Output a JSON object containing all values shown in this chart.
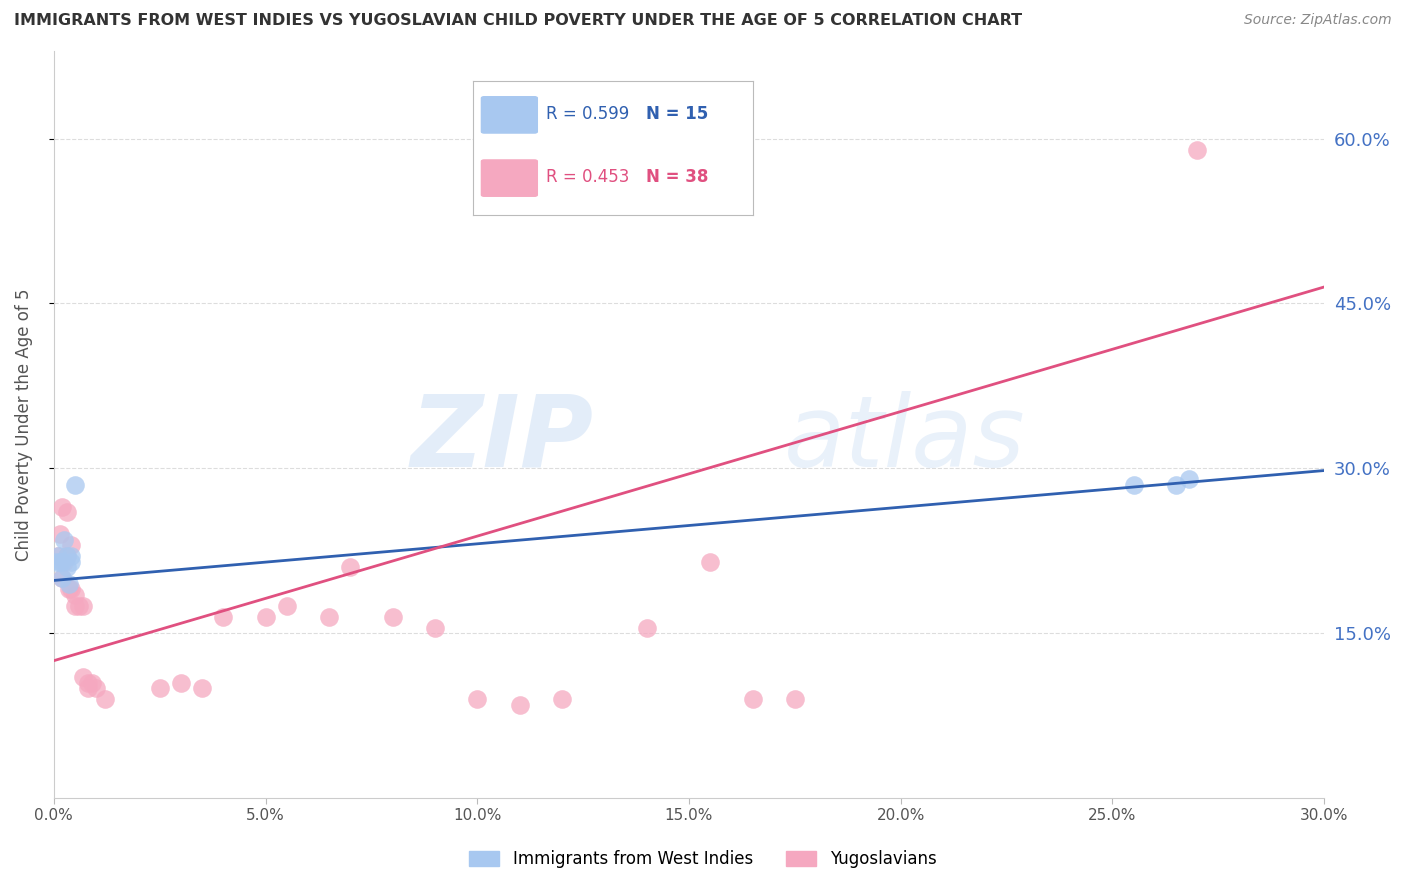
{
  "title": "IMMIGRANTS FROM WEST INDIES VS YUGOSLAVIAN CHILD POVERTY UNDER THE AGE OF 5 CORRELATION CHART",
  "source": "Source: ZipAtlas.com",
  "ylabel": "Child Poverty Under the Age of 5",
  "xlim": [
    0.0,
    0.3
  ],
  "ylim": [
    0.0,
    0.68
  ],
  "yticks": [
    0.15,
    0.3,
    0.45,
    0.6
  ],
  "xticks": [
    0.0,
    0.05,
    0.1,
    0.15,
    0.2,
    0.25,
    0.3
  ],
  "blue_scatter_x": [
    0.0005,
    0.001,
    0.0015,
    0.002,
    0.002,
    0.0025,
    0.003,
    0.003,
    0.0035,
    0.004,
    0.004,
    0.005,
    0.255,
    0.265,
    0.268
  ],
  "blue_scatter_y": [
    0.215,
    0.22,
    0.215,
    0.215,
    0.2,
    0.235,
    0.21,
    0.22,
    0.195,
    0.215,
    0.22,
    0.285,
    0.285,
    0.285,
    0.29
  ],
  "pink_scatter_x": [
    0.001,
    0.0015,
    0.002,
    0.002,
    0.0025,
    0.003,
    0.003,
    0.0035,
    0.004,
    0.004,
    0.005,
    0.005,
    0.006,
    0.007,
    0.007,
    0.008,
    0.008,
    0.009,
    0.01,
    0.012,
    0.025,
    0.03,
    0.035,
    0.04,
    0.05,
    0.055,
    0.065,
    0.07,
    0.08,
    0.09,
    0.1,
    0.11,
    0.12,
    0.14,
    0.155,
    0.165,
    0.175,
    0.27
  ],
  "pink_scatter_y": [
    0.22,
    0.24,
    0.265,
    0.2,
    0.215,
    0.26,
    0.22,
    0.19,
    0.19,
    0.23,
    0.185,
    0.175,
    0.175,
    0.175,
    0.11,
    0.105,
    0.1,
    0.105,
    0.1,
    0.09,
    0.1,
    0.105,
    0.1,
    0.165,
    0.165,
    0.175,
    0.165,
    0.21,
    0.165,
    0.155,
    0.09,
    0.085,
    0.09,
    0.155,
    0.215,
    0.09,
    0.09,
    0.59
  ],
  "blue_trend_x0": 0.0,
  "blue_trend_y0": 0.198,
  "blue_trend_x1": 0.3,
  "blue_trend_y1": 0.298,
  "pink_trend_x0": 0.0,
  "pink_trend_y0": 0.125,
  "pink_trend_x1": 0.3,
  "pink_trend_y1": 0.465,
  "blue_R": "0.599",
  "blue_N": "15",
  "pink_R": "0.453",
  "pink_N": "38",
  "blue_color": "#A8C8F0",
  "pink_color": "#F5A8C0",
  "blue_line_color": "#3060B0",
  "pink_line_color": "#E05080",
  "watermark_zip": "ZIP",
  "watermark_atlas": "atlas",
  "legend_label_blue": "Immigrants from West Indies",
  "legend_label_pink": "Yugoslavians",
  "background_color": "#FFFFFF",
  "grid_color": "#DDDDDD",
  "right_tick_color": "#4472C4",
  "title_color": "#333333",
  "source_color": "#888888"
}
